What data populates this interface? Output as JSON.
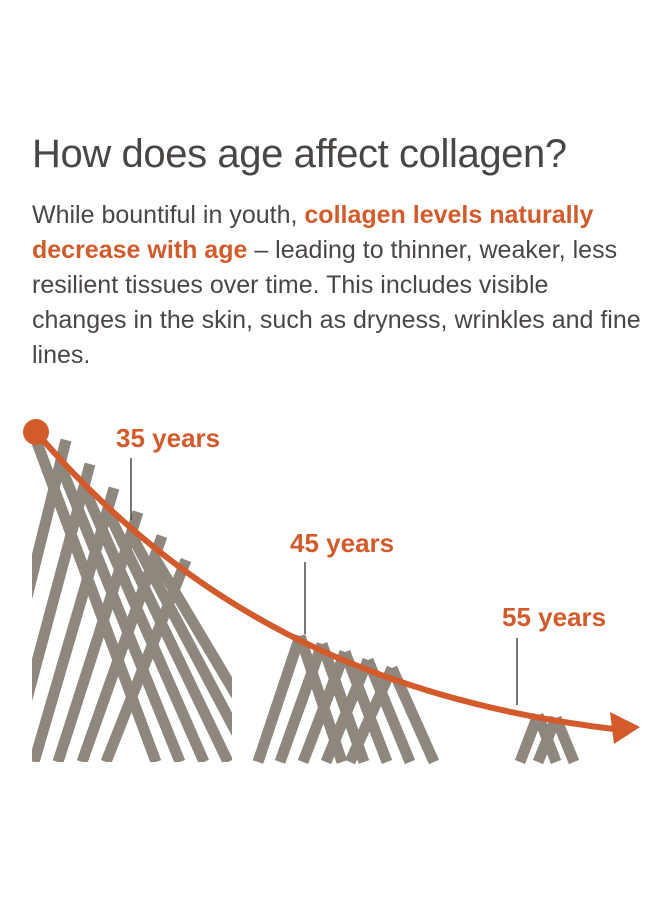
{
  "header": {
    "title": "How does age affect collagen?"
  },
  "intro": {
    "text_start": "While bountiful in youth, ",
    "highlight": "collagen levels naturally decrease with age",
    "text_end": " – leading to thinner, weaker, less resilient tissues over time. This includes visible changes in the skin, such as dryness, wrinkles and fine lines."
  },
  "diagram": {
    "markers": [
      {
        "label": "35 years"
      },
      {
        "label": "45 years"
      },
      {
        "label": "55 years"
      }
    ]
  },
  "colors": {
    "accent": "#d35a2a",
    "fiber": "#8d877e",
    "text": "#4a4644"
  }
}
